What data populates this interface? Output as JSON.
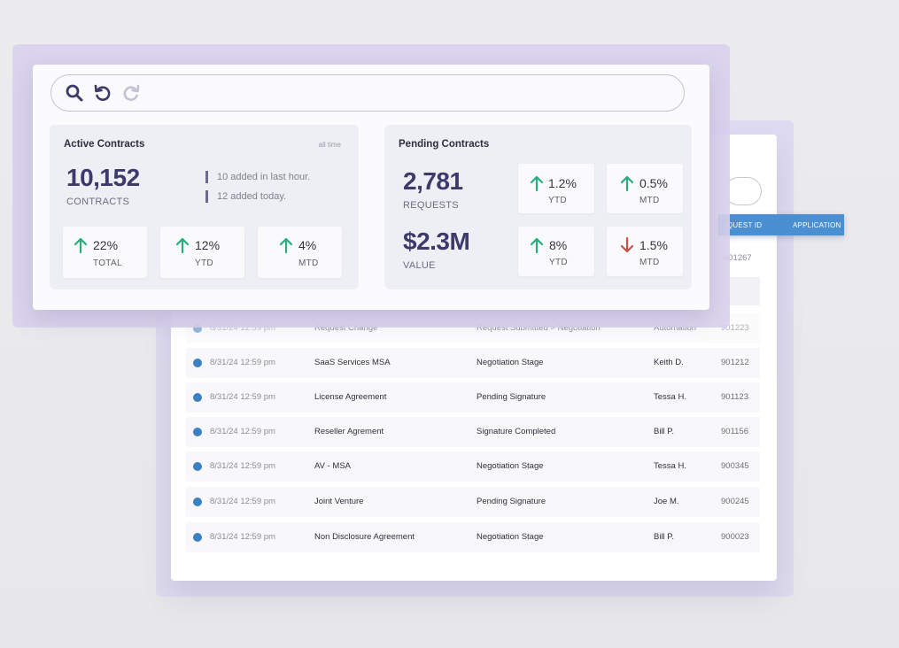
{
  "colors": {
    "accent_blue": "#4a8fd2",
    "up_green": "#2bab7e",
    "down_red": "#c9534b",
    "number_indigo": "#3b3a6b"
  },
  "toolbar": {
    "icons": [
      "search-icon",
      "undo-icon",
      "redo-icon"
    ]
  },
  "active_contracts": {
    "title": "Active Contracts",
    "aside": "all time",
    "count": "10,152",
    "count_label": "CONTRACTS",
    "notes": [
      "10 added in last hour.",
      "12 added today."
    ],
    "stats": [
      {
        "value": "22%",
        "label": "TOTAL",
        "trend": "up"
      },
      {
        "value": "12%",
        "label": "YTD",
        "trend": "up"
      },
      {
        "value": "4%",
        "label": "MTD",
        "trend": "up"
      }
    ]
  },
  "pending_contracts": {
    "title": "Pending Contracts",
    "requests": "2,781",
    "requests_label": "REQUESTS",
    "value": "$2.3M",
    "value_label": "VALUE",
    "request_stats": [
      {
        "value": "1.2%",
        "label": "YTD",
        "trend": "up"
      },
      {
        "value": "0.5%",
        "label": "MTD",
        "trend": "up"
      }
    ],
    "value_stats": [
      {
        "value": "8%",
        "label": "YTD",
        "trend": "up"
      },
      {
        "value": "1.5%",
        "label": "MTD",
        "trend": "down"
      }
    ]
  },
  "table": {
    "headers": [
      "QUEST ID",
      "APPLICATION"
    ],
    "ghost_id": "901267",
    "rows": [
      {
        "date": "8/31/24 12:59 pm",
        "name": "Request Change",
        "status": "Request Submitted > Negotiation",
        "owner": "Automation",
        "id": "901223"
      },
      {
        "date": "8/31/24 12:59 pm",
        "name": "SaaS Services MSA",
        "status": "Negotiation Stage",
        "owner": "Keith D.",
        "id": "901212"
      },
      {
        "date": "8/31/24 12:59 pm",
        "name": "License Agreement",
        "status": "Pending Signature",
        "owner": "Tessa H.",
        "id": "901123"
      },
      {
        "date": "8/31/24 12:59 pm",
        "name": "Reseller Agrement",
        "status": "Signature Completed",
        "owner": "Bill P.",
        "id": "901156"
      },
      {
        "date": "8/31/24 12:59 pm",
        "name": "AV - MSA",
        "status": "Negotiation Stage",
        "owner": "Tessa H.",
        "id": "900345"
      },
      {
        "date": "8/31/24 12:59 pm",
        "name": "Joint Venture",
        "status": "Pending Signature",
        "owner": "Joe M.",
        "id": "900245"
      },
      {
        "date": "8/31/24 12:59 pm",
        "name": "Non Disclosure Agreement",
        "status": "Negotiation Stage",
        "owner": "Bill P.",
        "id": "900023"
      }
    ]
  }
}
